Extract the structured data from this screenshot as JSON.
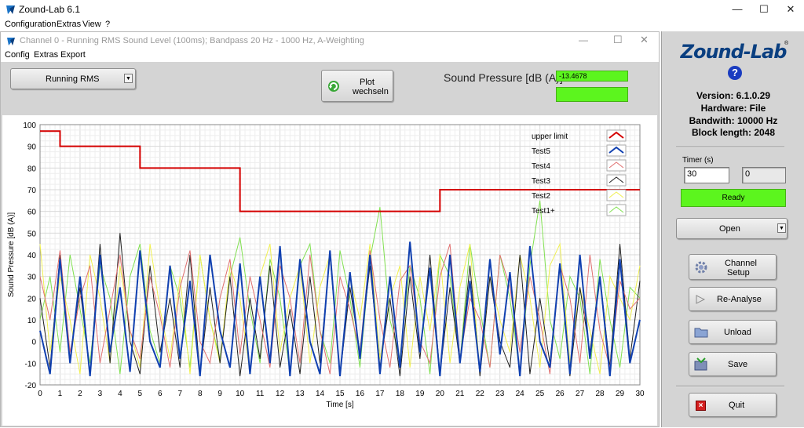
{
  "app": {
    "title": "Zound-Lab 6.1",
    "menu": [
      "Configuration",
      "Extras",
      "View",
      "?"
    ]
  },
  "inner": {
    "title": "Channel 0 - Running RMS Sound Level (100ms); Bandpass 20 Hz - 1000 Hz, A-Weighting",
    "menu": [
      "Config",
      "Extras",
      "Export"
    ],
    "mode_select": "Running RMS",
    "plot_button_line1": "Plot",
    "plot_button_line2": "wechseln",
    "sound_pressure_label": "Sound Pressure [dB (A)]",
    "sound_pressure_value": "-13.4678",
    "sound_pressure_value2": ""
  },
  "right_panel": {
    "logo_text": "Zound-Lab",
    "version": "Version: 6.1.0.29",
    "hardware": "Hardware: File",
    "bandwidth": "Bandwith: 10000 Hz",
    "block_length": "Block length: 2048",
    "timer_label": "Timer (s)",
    "timer_value": "30",
    "timer_count": "0",
    "status": "Ready",
    "open_label": "Open",
    "channel_setup_line1": "Channel",
    "channel_setup_line2": "Setup",
    "reanalyse_label": "Re-Analyse",
    "unload_label": "Unload",
    "save_label": "Save",
    "quit_label": "Quit"
  },
  "colors": {
    "status_green": "#5cf51e",
    "upper_limit": "#d40000",
    "test5": "#1040b0",
    "test4": "#e07070",
    "test3": "#202020",
    "test2": "#f0f050",
    "test1": "#80e050"
  },
  "chart_data": {
    "type": "line",
    "xlabel": "Time [s]",
    "ylabel": "Sound Pressure [dB (A)]",
    "xlim": [
      0,
      30
    ],
    "ylim": [
      -20,
      100
    ],
    "x_ticks": [
      0,
      1,
      2,
      3,
      4,
      5,
      6,
      7,
      8,
      9,
      10,
      11,
      12,
      13,
      14,
      15,
      16,
      17,
      18,
      19,
      20,
      21,
      22,
      23,
      24,
      25,
      26,
      27,
      28,
      29,
      30
    ],
    "y_ticks": [
      -20,
      -10,
      0,
      10,
      20,
      30,
      40,
      50,
      60,
      70,
      80,
      90,
      100
    ],
    "grid": true,
    "legend_position": "top-right",
    "series": [
      {
        "name": "upper limit",
        "color": "#d40000",
        "x": [
          0,
          1,
          1,
          5,
          5,
          10,
          10,
          20,
          20,
          30
        ],
        "y": [
          97,
          97,
          90,
          90,
          80,
          80,
          60,
          60,
          70,
          70
        ]
      },
      {
        "name": "Test5",
        "color": "#1040b0",
        "x": [
          0,
          0.5,
          1,
          1.5,
          2,
          2.5,
          3,
          3.5,
          4,
          4.5,
          5,
          5.5,
          6,
          6.5,
          7,
          7.5,
          8,
          8.5,
          9,
          9.5,
          10,
          10.5,
          11,
          11.5,
          12,
          12.5,
          13,
          13.5,
          14,
          14.5,
          15,
          15.5,
          16,
          16.5,
          17,
          17.5,
          18,
          18.5,
          19,
          19.5,
          20,
          20.5,
          21,
          21.5,
          22,
          22.5,
          23,
          23.5,
          24,
          24.5,
          25,
          25.5,
          26,
          26.5,
          27,
          27.5,
          28,
          28.5,
          29,
          29.5,
          30
        ],
        "y": [
          5,
          -15,
          38,
          -10,
          30,
          -16,
          40,
          -5,
          25,
          -14,
          42,
          0,
          -12,
          35,
          -8,
          28,
          -16,
          40,
          5,
          -12,
          36,
          -15,
          30,
          -10,
          44,
          -16,
          38,
          0,
          -15,
          42,
          -16,
          32,
          -8,
          40,
          -15,
          30,
          -12,
          46,
          -5,
          34,
          -16,
          40,
          -10,
          28,
          -14,
          38,
          -6,
          32,
          -16,
          44,
          0,
          -12,
          36,
          -15,
          40,
          -8,
          30,
          -16,
          38,
          -10,
          10
        ]
      },
      {
        "name": "Test4",
        "color": "#e07070",
        "x": [
          0,
          0.5,
          1,
          1.5,
          2,
          2.5,
          3,
          3.5,
          4,
          4.5,
          5,
          5.5,
          6,
          6.5,
          7,
          7.5,
          8,
          8.5,
          9,
          9.5,
          10,
          10.5,
          11,
          11.5,
          12,
          12.5,
          13,
          13.5,
          14,
          14.5,
          15,
          15.5,
          16,
          16.5,
          17,
          17.5,
          18,
          18.5,
          19,
          19.5,
          20,
          20.5,
          21,
          21.5,
          22,
          22.5,
          23,
          23.5,
          24,
          24.5,
          25,
          25.5,
          26,
          26.5,
          27,
          27.5,
          28,
          28.5,
          29,
          29.5,
          30
        ],
        "y": [
          30,
          10,
          42,
          -5,
          20,
          35,
          -10,
          15,
          40,
          5,
          -8,
          30,
          12,
          -12,
          25,
          42,
          0,
          -10,
          20,
          38,
          -6,
          30,
          10,
          -12,
          35,
          20,
          -10,
          40,
          5,
          -15,
          30,
          15,
          -5,
          42,
          10,
          -12,
          28,
          35,
          0,
          -10,
          30,
          45,
          -8,
          20,
          10,
          -12,
          40,
          25,
          -5,
          30,
          10,
          -15,
          35,
          20,
          -10,
          40,
          5,
          -12,
          28,
          15,
          20
        ]
      },
      {
        "name": "Test3",
        "color": "#202020",
        "x": [
          0,
          0.5,
          1,
          1.5,
          2,
          2.5,
          3,
          3.5,
          4,
          4.5,
          5,
          5.5,
          6,
          6.5,
          7,
          7.5,
          8,
          8.5,
          9,
          9.5,
          10,
          10.5,
          11,
          11.5,
          12,
          12.5,
          13,
          13.5,
          14,
          14.5,
          15,
          15.5,
          16,
          16.5,
          17,
          17.5,
          18,
          18.5,
          19,
          19.5,
          20,
          20.5,
          21,
          21.5,
          22,
          22.5,
          23,
          23.5,
          24,
          24.5,
          25,
          25.5,
          26,
          26.5,
          27,
          27.5,
          28,
          28.5,
          29,
          29.5,
          30
        ],
        "y": [
          20,
          -12,
          40,
          -8,
          25,
          -15,
          45,
          -10,
          50,
          0,
          -15,
          35,
          -5,
          20,
          -12,
          40,
          -15,
          25,
          -10,
          30,
          -16,
          20,
          -8,
          35,
          -12,
          15,
          -15,
          30,
          -10,
          40,
          -16,
          25,
          -5,
          35,
          -12,
          20,
          -16,
          30,
          -8,
          40,
          -15,
          25,
          -10,
          35,
          -16,
          30,
          0,
          -12,
          40,
          -15,
          20,
          -10,
          35,
          -16,
          25,
          -5,
          30,
          -12,
          45,
          -8,
          28
        ]
      },
      {
        "name": "Test2",
        "color": "#f0f050",
        "x": [
          0,
          0.5,
          1,
          1.5,
          2,
          2.5,
          3,
          3.5,
          4,
          4.5,
          5,
          5.5,
          6,
          6.5,
          7,
          7.5,
          8,
          8.5,
          9,
          9.5,
          10,
          10.5,
          11,
          11.5,
          12,
          12.5,
          13,
          13.5,
          14,
          14.5,
          15,
          15.5,
          16,
          16.5,
          17,
          17.5,
          18,
          18.5,
          19,
          19.5,
          20,
          20.5,
          21,
          21.5,
          22,
          22.5,
          23,
          23.5,
          24,
          24.5,
          25,
          25.5,
          26,
          26.5,
          27,
          27.5,
          28,
          28.5,
          29,
          29.5,
          30
        ],
        "y": [
          45,
          -5,
          30,
          10,
          -15,
          40,
          20,
          -10,
          35,
          5,
          -12,
          45,
          15,
          -8,
          30,
          -15,
          40,
          10,
          -10,
          35,
          20,
          -15,
          30,
          45,
          -5,
          20,
          35,
          -10,
          25,
          40,
          -15,
          30,
          10,
          45,
          -8,
          20,
          35,
          -12,
          30,
          5,
          40,
          -10,
          25,
          45,
          -15,
          30,
          10,
          -5,
          40,
          20,
          -12,
          35,
          45,
          -10,
          25,
          5,
          -15,
          30,
          20,
          10,
          35
        ]
      },
      {
        "name": "Test1+",
        "color": "#80e050",
        "x": [
          0,
          0.5,
          1,
          1.5,
          2,
          2.5,
          3,
          3.5,
          4,
          4.5,
          5,
          5.5,
          6,
          6.5,
          7,
          7.5,
          8,
          8.5,
          9,
          9.5,
          10,
          10.5,
          11,
          11.5,
          12,
          12.5,
          13,
          13.5,
          14,
          14.5,
          15,
          15.5,
          16,
          16.5,
          17,
          17.5,
          18,
          18.5,
          19,
          19.5,
          20,
          20.5,
          21,
          21.5,
          22,
          22.5,
          23,
          23.5,
          24,
          24.5,
          25,
          25.5,
          26,
          26.5,
          27,
          27.5,
          28,
          28.5,
          29,
          29.5,
          30
        ],
        "y": [
          10,
          30,
          -5,
          40,
          15,
          -10,
          35,
          20,
          -15,
          30,
          45,
          5,
          -10,
          35,
          20,
          -12,
          40,
          10,
          -8,
          30,
          48,
          15,
          -10,
          38,
          20,
          -15,
          35,
          45,
          5,
          -10,
          42,
          20,
          -12,
          38,
          62,
          10,
          -8,
          35,
          20,
          -15,
          40,
          30,
          -10,
          45,
          15,
          -12,
          40,
          20,
          -15,
          35,
          65,
          10,
          -8,
          30,
          20,
          -15,
          38,
          10,
          -12,
          25,
          20
        ]
      }
    ]
  }
}
